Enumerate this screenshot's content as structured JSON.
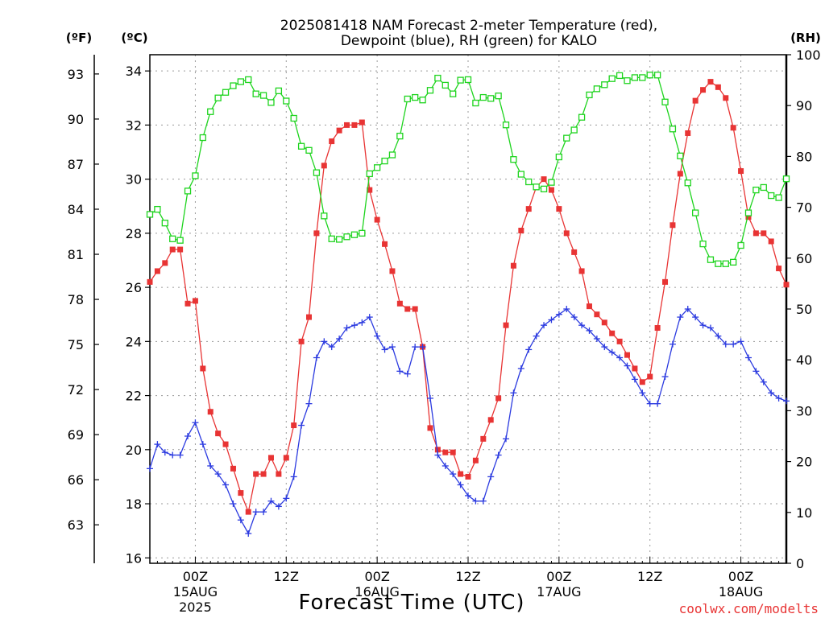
{
  "chart_data": {
    "type": "line",
    "title_line1": "2025081418 NAM Forecast 2-meter Temperature (red),",
    "title_line2": "Dewpoint (blue), RH (green) for KALO",
    "xlabel": "Forecast Time (UTC)",
    "watermark": "coolwx.com/modelts",
    "left_unit_f": "(ºF)",
    "left_unit_c": "(ºC)",
    "right_unit": "(RH)",
    "ylim_c": [
      15.8,
      34.6
    ],
    "ylim_rh": [
      0,
      100
    ],
    "yticks_c": [
      "16",
      "18",
      "20",
      "22",
      "24",
      "26",
      "28",
      "30",
      "32",
      "34"
    ],
    "yticks_f": [
      "63",
      "66",
      "69",
      "72",
      "75",
      "78",
      "81",
      "84",
      "87",
      "90",
      "93"
    ],
    "yticks_f_values": [
      63,
      66,
      69,
      72,
      75,
      78,
      81,
      84,
      87,
      90,
      93
    ],
    "yticks_rh": [
      "0",
      "10",
      "20",
      "30",
      "40",
      "50",
      "60",
      "70",
      "80",
      "90",
      "100"
    ],
    "x_hour_range": [
      -6,
      78
    ],
    "x_ticks": [
      {
        "hour": 0,
        "label": "00Z",
        "date": "15AUG",
        "year": "2025"
      },
      {
        "hour": 12,
        "label": "12Z",
        "date": "",
        "year": ""
      },
      {
        "hour": 24,
        "label": "00Z",
        "date": "16AUG",
        "year": ""
      },
      {
        "hour": 36,
        "label": "12Z",
        "date": "",
        "year": ""
      },
      {
        "hour": 48,
        "label": "00Z",
        "date": "17AUG",
        "year": ""
      },
      {
        "hour": 60,
        "label": "12Z",
        "date": "",
        "year": ""
      },
      {
        "hour": 72,
        "label": "00Z",
        "date": "18AUG",
        "year": ""
      }
    ],
    "hours": [
      -6,
      -5,
      -4,
      -3,
      -2,
      -1,
      0,
      1,
      2,
      3,
      4,
      5,
      6,
      7,
      8,
      9,
      10,
      11,
      12,
      13,
      14,
      15,
      16,
      17,
      18,
      19,
      20,
      21,
      22,
      23,
      24,
      25,
      26,
      27,
      28,
      29,
      30,
      31,
      32,
      33,
      34,
      35,
      36,
      37,
      38,
      39,
      40,
      41,
      42,
      43,
      44,
      45,
      46,
      47,
      48,
      49,
      50,
      51,
      52,
      53,
      54,
      55,
      56,
      57,
      58,
      59,
      60,
      61,
      62,
      63,
      64,
      65,
      66,
      67,
      68,
      69,
      70,
      71,
      72,
      73,
      74,
      75,
      76,
      77,
      78
    ],
    "series": [
      {
        "name": "2-meter Temperature",
        "color": "#e83434",
        "marker": "filled-square",
        "values": [
          26.2,
          26.6,
          26.9,
          27.4,
          27.4,
          25.4,
          25.5,
          23.0,
          21.4,
          20.6,
          20.2,
          19.3,
          18.4,
          17.7,
          19.1,
          19.1,
          19.7,
          19.1,
          19.7,
          20.9,
          24.0,
          24.9,
          28.0,
          30.5,
          31.4,
          31.8,
          32.0,
          32.0,
          32.1,
          29.6,
          28.5,
          27.6,
          26.6,
          25.4,
          25.2,
          25.2,
          23.8,
          20.8,
          20.0,
          19.9,
          19.9,
          19.1,
          19.0,
          19.6,
          20.4,
          21.1,
          21.9,
          24.6,
          26.8,
          28.1,
          28.9,
          29.7,
          30.0,
          29.6,
          28.9,
          28.0,
          27.3,
          26.6,
          25.3,
          25.0,
          24.7,
          24.3,
          24.0,
          23.5,
          23.0,
          22.5,
          22.7,
          24.5,
          26.2,
          28.3,
          30.2,
          31.7,
          32.9,
          33.3,
          33.6,
          33.4,
          33.0,
          31.9,
          30.3,
          28.6,
          28.0,
          28.0,
          27.7,
          26.7,
          26.1
        ]
      },
      {
        "name": "Dewpoint",
        "color": "#2c3be0",
        "marker": "plus",
        "values": [
          19.3,
          20.2,
          19.9,
          19.8,
          19.8,
          20.5,
          21.0,
          20.2,
          19.4,
          19.1,
          18.7,
          18.0,
          17.4,
          16.9,
          17.7,
          17.7,
          18.1,
          17.9,
          18.2,
          19.0,
          20.9,
          21.7,
          23.4,
          24.0,
          23.8,
          24.1,
          24.5,
          24.6,
          24.7,
          24.9,
          24.2,
          23.7,
          23.8,
          22.9,
          22.8,
          23.8,
          23.8,
          21.9,
          19.8,
          19.4,
          19.1,
          18.7,
          18.3,
          18.1,
          18.1,
          19.0,
          19.8,
          20.4,
          22.1,
          23.0,
          23.7,
          24.2,
          24.6,
          24.8,
          25.0,
          25.2,
          24.9,
          24.6,
          24.4,
          24.1,
          23.8,
          23.6,
          23.4,
          23.1,
          22.6,
          22.1,
          21.7,
          21.7,
          22.7,
          23.9,
          24.9,
          25.2,
          24.9,
          24.6,
          24.5,
          24.2,
          23.9,
          23.9,
          24.0,
          23.4,
          22.9,
          22.5,
          22.1,
          21.9,
          21.8
        ]
      },
      {
        "name": "RH",
        "color": "#1ed41e",
        "marker": "open-square",
        "values": [
          68.6,
          69.6,
          66.9,
          63.8,
          63.5,
          73.2,
          76.2,
          83.7,
          88.8,
          91.5,
          92.6,
          93.9,
          94.7,
          95.1,
          92.3,
          92.0,
          90.6,
          92.9,
          90.9,
          87.5,
          82.0,
          81.2,
          76.8,
          68.3,
          63.8,
          63.7,
          64.2,
          64.6,
          64.9,
          76.6,
          77.8,
          79.1,
          80.3,
          84.0,
          91.3,
          91.6,
          91.1,
          93.0,
          95.4,
          94.0,
          92.3,
          95.0,
          95.1,
          90.5,
          91.6,
          91.4,
          91.9,
          86.2,
          79.4,
          76.5,
          75.0,
          74.0,
          73.6,
          74.9,
          79.9,
          83.6,
          85.2,
          87.7,
          92.1,
          93.3,
          94.1,
          95.3,
          95.9,
          94.9,
          95.5,
          95.5,
          96.0,
          96.0,
          90.7,
          85.4,
          80.1,
          74.8,
          68.9,
          62.8,
          59.7,
          58.9,
          58.9,
          59.2,
          62.5,
          68.9,
          73.4,
          73.9,
          72.3,
          71.9,
          75.6
        ]
      }
    ]
  }
}
